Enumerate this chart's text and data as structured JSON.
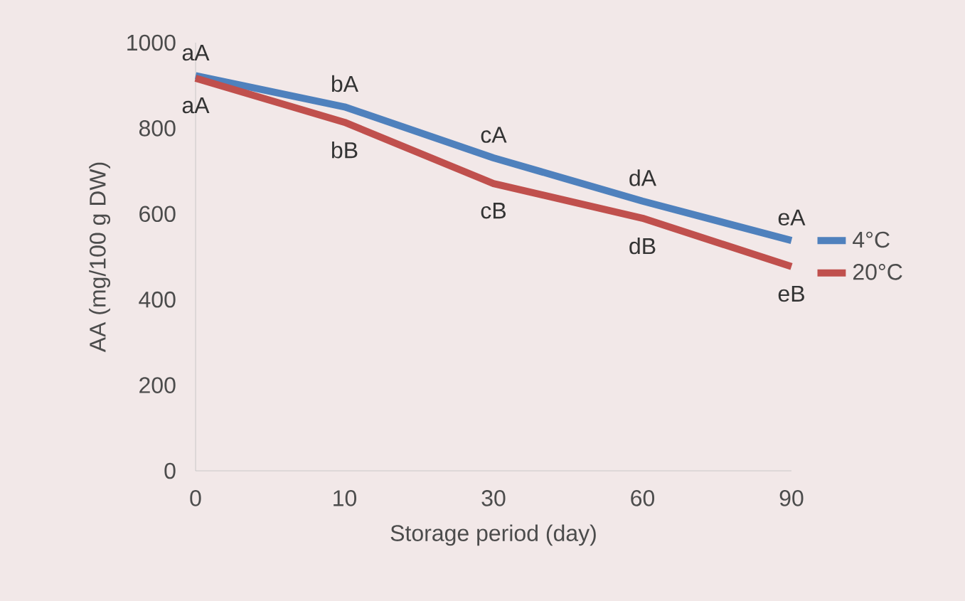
{
  "chart_data": {
    "type": "line",
    "xlabel": "Storage period (day)",
    "ylabel": "AA (mg/100 g DW)",
    "categories": [
      "0",
      "10",
      "30",
      "60",
      "90"
    ],
    "series": [
      {
        "name": "4°C",
        "color": "#4f81bd",
        "values": [
          923,
          850,
          731,
          630,
          538
        ]
      },
      {
        "name": "20°C",
        "color": "#c0504d",
        "values": [
          917,
          814,
          671,
          590,
          477
        ]
      }
    ],
    "ylim": [
      0,
      1000
    ],
    "yticks": [
      0,
      200,
      400,
      600,
      800,
      1000
    ],
    "grid": false,
    "legend": "right",
    "marker": "none",
    "line_style": "solid",
    "annotations": [
      {
        "text": "aA",
        "x": "0",
        "y": 923
      },
      {
        "text": "aA",
        "x": "0",
        "y": 917
      },
      {
        "text": "bA",
        "x": "10",
        "y": 850
      },
      {
        "text": "bB",
        "x": "10",
        "y": 814
      },
      {
        "text": "cA",
        "x": "30",
        "y": 731
      },
      {
        "text": "cB",
        "x": "30",
        "y": 671
      },
      {
        "text": "dA",
        "x": "60",
        "y": 630
      },
      {
        "text": "dB",
        "x": "60",
        "y": 590
      },
      {
        "text": "eA",
        "x": "90",
        "y": 538
      },
      {
        "text": "eB",
        "x": "90",
        "y": 477
      }
    ]
  }
}
